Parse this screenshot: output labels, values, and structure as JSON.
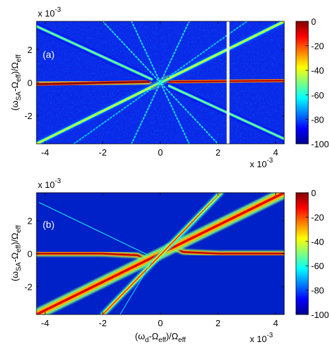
{
  "chart_data": [
    {
      "type": "heatmap",
      "panel_label": "(a)",
      "title": "",
      "xlabel": "",
      "ylabel": "(ω_SA-Ω_eff)/Ω_eff",
      "ylabel_parts": {
        "open": "(ω",
        "sub1": "SA",
        "mid": "-Ω",
        "sub2": "eff",
        "close": ")/Ω",
        "sub3": "eff"
      },
      "x_exponent": "x 10",
      "x_exponent_power": "-3",
      "y_exponent": "x 10",
      "y_exponent_power": "-3",
      "xlim": [
        -4.3,
        4.3
      ],
      "ylim": [
        -3.7,
        3.7
      ],
      "x_ticks": [
        -4,
        -2,
        0,
        2,
        4
      ],
      "x_tick_labels": [
        "-4",
        "-2",
        "0",
        "2",
        "4"
      ],
      "y_ticks": [
        -2,
        0,
        2
      ],
      "y_tick_labels": [
        "-2",
        "0",
        "2"
      ],
      "colorbar": {
        "range": [
          -100,
          0
        ],
        "ticks": [
          0,
          -20,
          -40,
          -60,
          -80,
          -100
        ],
        "tick_labels": [
          "0",
          "-20",
          "-40",
          "-60",
          "-80",
          "-100"
        ]
      },
      "background_level": -85,
      "gap_x": 2.35,
      "features": [
        {
          "name": "horizontal-line",
          "points": [
            [
              -4.3,
              -0.1
            ],
            [
              -0.4,
              0.05
            ]
          ],
          "level": 0
        },
        {
          "name": "horizontal-line",
          "points": [
            [
              0.3,
              0.05
            ],
            [
              4.3,
              0.12
            ]
          ],
          "level": -5
        },
        {
          "name": "central-diagonal",
          "points": [
            [
              -0.3,
              -0.3
            ],
            [
              0.3,
              0.3
            ]
          ],
          "level": 0
        },
        {
          "name": "rising-line",
          "points": [
            [
              -4.3,
              -3.7
            ],
            [
              4.3,
              3.7
            ]
          ],
          "level": -40
        },
        {
          "name": "falling-line",
          "points": [
            [
              -4.3,
              3.4
            ],
            [
              -0.3,
              0.2
            ]
          ],
          "level": -50
        },
        {
          "name": "falling-line",
          "points": [
            [
              0.3,
              -0.2
            ],
            [
              4.3,
              -3.4
            ]
          ],
          "level": -50
        },
        {
          "name": "dotted-line",
          "points": [
            [
              -2.0,
              3.7
            ],
            [
              2.0,
              -3.7
            ]
          ],
          "level": -60
        },
        {
          "name": "dotted-line",
          "points": [
            [
              -1.0,
              3.7
            ],
            [
              1.0,
              -3.7
            ]
          ],
          "level": -60
        },
        {
          "name": "dotted-line",
          "points": [
            [
              -1.0,
              -3.7
            ],
            [
              1.0,
              3.7
            ]
          ],
          "level": -60
        },
        {
          "name": "dotted-line",
          "points": [
            [
              -3.0,
              -3.7
            ],
            [
              3.0,
              3.7
            ]
          ],
          "level": -65
        }
      ]
    },
    {
      "type": "heatmap",
      "panel_label": "(b)",
      "title": "",
      "xlabel": "(ω_d-Ω_eff)/Ω_eff",
      "xlabel_parts": {
        "open": "(ω",
        "sub1": "d",
        "mid": "-Ω",
        "sub2": "eff",
        "close": ")/Ω",
        "sub3": "eff"
      },
      "ylabel": "(ω_SA-Ω_eff)/Ω_eff",
      "ylabel_parts": {
        "open": "(ω",
        "sub1": "SA",
        "mid": "-Ω",
        "sub2": "eff",
        "close": ")/Ω",
        "sub3": "eff"
      },
      "x_exponent": "x 10",
      "x_exponent_power": "-3",
      "y_exponent": "x 10",
      "y_exponent_power": "-3",
      "xlim": [
        -4.3,
        4.3
      ],
      "ylim": [
        -3.7,
        3.7
      ],
      "x_ticks": [
        -4,
        -2,
        0,
        2,
        4
      ],
      "x_tick_labels": [
        "-4",
        "-2",
        "0",
        "2",
        "4"
      ],
      "y_ticks": [
        -2,
        0,
        2
      ],
      "y_tick_labels": [
        "-2",
        "0",
        "2"
      ],
      "colorbar": {
        "range": [
          -100,
          0
        ],
        "ticks": [
          0,
          -20,
          -40,
          -60,
          -80,
          -100
        ],
        "tick_labels": [
          "0",
          "-20",
          "-40",
          "-60",
          "-80",
          "-100"
        ]
      },
      "background_level": -90,
      "features": [
        {
          "name": "horizontal-branch",
          "points": [
            [
              -4.3,
              0.0
            ],
            [
              -2.0,
              0.0
            ],
            [
              -0.8,
              -0.1
            ],
            [
              -0.3,
              -0.5
            ]
          ],
          "level": -5
        },
        {
          "name": "horizontal-branch",
          "points": [
            [
              0.3,
              0.5
            ],
            [
              0.8,
              0.1
            ],
            [
              2.0,
              0.0
            ],
            [
              4.3,
              0.0
            ]
          ],
          "level": -5
        },
        {
          "name": "rising-broad-line",
          "points": [
            [
              -4.3,
              -3.7
            ],
            [
              4.3,
              3.7
            ]
          ],
          "level": -10
        },
        {
          "name": "rising-narrow-line",
          "points": [
            [
              -2.0,
              -3.7
            ],
            [
              2.1,
              3.7
            ]
          ],
          "level": -20
        },
        {
          "name": "faint-line",
          "points": [
            [
              -4.2,
              3.1
            ],
            [
              -0.4,
              -0.1
            ]
          ],
          "level": -60
        },
        {
          "name": "faint-line",
          "points": [
            [
              0.35,
              0.4
            ],
            [
              2.1,
              3.7
            ]
          ],
          "level": -60
        },
        {
          "name": "faint-line",
          "points": [
            [
              -1.4,
              -3.7
            ],
            [
              -0.3,
              -0.5
            ]
          ],
          "level": -65
        }
      ]
    }
  ]
}
